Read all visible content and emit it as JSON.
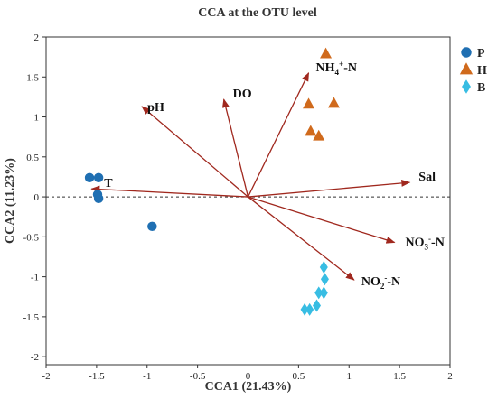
{
  "chart_data": {
    "type": "scatter",
    "title": "CCA at the OTU level",
    "xlabel": "CCA1 (21.43%)",
    "ylabel": "CCA2 (11.23%)",
    "xlim": [
      -2,
      2
    ],
    "ylim": [
      -2.1,
      2
    ],
    "x_ticks": [
      -2,
      -1.5,
      -1,
      -0.5,
      0,
      0.5,
      1,
      1.5,
      2
    ],
    "y_ticks": [
      -2,
      -1.5,
      -1,
      -0.5,
      0,
      0.5,
      1,
      1.5,
      2
    ],
    "x_tick_labels": [
      "-2",
      "-1.5",
      "-1",
      "-0.5",
      "0",
      "0.5",
      "1",
      "1.5",
      "2"
    ],
    "y_tick_labels": [
      "-2",
      "-1.5",
      "-1",
      "-0.5",
      "0",
      "0.5",
      "1",
      "1.5",
      "2"
    ],
    "reference_lines": {
      "x": 0,
      "y": 0,
      "style": "dashed"
    },
    "legend_position": "top-right",
    "series": [
      {
        "name": "P",
        "marker": "circle",
        "color": "#1f6fb2",
        "points": [
          [
            -1.57,
            0.24
          ],
          [
            -1.48,
            0.24
          ],
          [
            -1.49,
            0.03
          ],
          [
            -1.48,
            -0.02
          ],
          [
            -0.95,
            -0.37
          ]
        ]
      },
      {
        "name": "H",
        "marker": "triangle",
        "color": "#d06a1c",
        "points": [
          [
            0.77,
            1.79
          ],
          [
            0.6,
            1.16
          ],
          [
            0.85,
            1.17
          ],
          [
            0.62,
            0.82
          ],
          [
            0.7,
            0.76
          ]
        ]
      },
      {
        "name": "B",
        "marker": "diamond",
        "color": "#38bde3",
        "points": [
          [
            0.75,
            -0.88
          ],
          [
            0.76,
            -1.03
          ],
          [
            0.75,
            -1.2
          ],
          [
            0.7,
            -1.2
          ],
          [
            0.68,
            -1.36
          ],
          [
            0.61,
            -1.41
          ],
          [
            0.56,
            -1.41
          ]
        ]
      }
    ],
    "vectors": [
      {
        "label": "pH",
        "sup": "",
        "sub": "",
        "x": -1.05,
        "y": 1.13
      },
      {
        "label": "DO",
        "sup": "",
        "sub": "",
        "x": -0.24,
        "y": 1.22
      },
      {
        "label": "NH4+-N",
        "base": "NH",
        "sub": "4",
        "sup": "+",
        "tail": "-N",
        "x": 0.6,
        "y": 1.55
      },
      {
        "label": "Sal",
        "sup": "",
        "sub": "",
        "x": 1.6,
        "y": 0.18
      },
      {
        "label": "NO3--N",
        "base": "NO",
        "sub": "3",
        "sup": "-",
        "tail": "-N",
        "x": 1.45,
        "y": -0.57
      },
      {
        "label": "NO2--N",
        "base": "NO",
        "sub": "2",
        "sup": "-",
        "tail": "-N",
        "x": 1.05,
        "y": -1.04
      },
      {
        "label": "T",
        "sup": "",
        "sub": "",
        "x": -1.55,
        "y": 0.1
      }
    ],
    "arrow_color": "#a0281e"
  }
}
